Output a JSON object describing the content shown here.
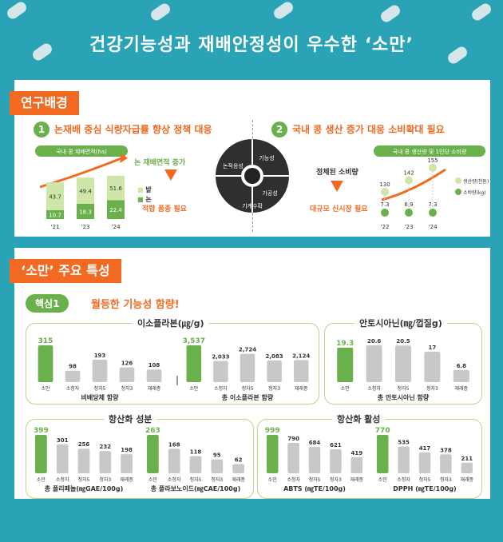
{
  "title": "건강기능성과 재배안정성이 우수한 ‘소만’",
  "section1": {
    "label": "연구배경",
    "left": {
      "num": "1",
      "heading": "논재배 중심 식량자급률 향상 정책 대응",
      "badge": "국내 콩 재배면적(ha)",
      "note1": "논 재배면적 증가",
      "note2": "적합 품종 필요"
    },
    "right": {
      "num": "2",
      "heading": "국내 콩 생산 증가 대응 소비확대 필요",
      "badge": "국내 콩 생산량 및 1인당 소비량",
      "note1": "정체된 소비량",
      "note2": "대규모 신시장 필요"
    },
    "wheel": [
      "기능성",
      "가공성",
      "기계수확",
      "논적응성"
    ]
  },
  "section2": {
    "label": "‘소만’ 주요 특성",
    "core_badge": "핵심1",
    "core_text": "월등한 기능성 함량!"
  },
  "cards": {
    "iso": "이소플라본(㎍/g)",
    "antho": "안토시아닌(㎎/껍질g)",
    "antiox_comp": "항산화 성분",
    "antiox_act": "항산화 활성"
  },
  "chart_data": [
    {
      "type": "bar",
      "title": "국내 콩 재배면적(ha)",
      "categories": [
        "‘21",
        "‘23",
        "‘24"
      ],
      "series": [
        {
          "name": "밭",
          "values": [
            43.7,
            49.4,
            51.6
          ]
        },
        {
          "name": "논",
          "values": [
            10.7,
            18.3,
            22.4
          ]
        }
      ],
      "stacked": true
    },
    {
      "type": "scatter",
      "title": "국내 콩 생산량 및 1인당 소비량",
      "categories": [
        "‘22",
        "‘23",
        "‘24"
      ],
      "series": [
        {
          "name": "생산량(천톤)",
          "values": [
            130,
            142,
            155
          ]
        },
        {
          "name": "소비량(kg)",
          "values": [
            7.3,
            6.9,
            7.3
          ]
        }
      ]
    },
    {
      "type": "bar",
      "xlabel": "비배당체 함량",
      "categories": [
        "소만",
        "소청자",
        "청자5",
        "청자3",
        "재래종"
      ],
      "values": [
        315,
        98,
        193,
        126,
        108
      ]
    },
    {
      "type": "bar",
      "xlabel": "총 이소플라본 함량",
      "categories": [
        "소만",
        "소청자",
        "청자5",
        "청자3",
        "재래종"
      ],
      "values": [
        "3,537",
        "2,033",
        "2,724",
        "2,083",
        "2,124"
      ]
    },
    {
      "type": "bar",
      "xlabel": "총 안토시아닌 함량",
      "categories": [
        "소만",
        "소청자",
        "청자5",
        "청자3",
        "재래종"
      ],
      "values": [
        19.3,
        20.6,
        20.5,
        17.0,
        6.8
      ]
    },
    {
      "type": "bar",
      "xlabel": "총 폴리페놀(㎎GAE/100g)",
      "categories": [
        "소만",
        "소청자",
        "청자5",
        "청자3",
        "재래종"
      ],
      "values": [
        399,
        301,
        256,
        232,
        198
      ]
    },
    {
      "type": "bar",
      "xlabel": "총 플라보노이드(㎎CAE/100g)",
      "categories": [
        "소만",
        "소청자",
        "청자5",
        "청자3",
        "재래종"
      ],
      "values": [
        263,
        168,
        118,
        95,
        62
      ]
    },
    {
      "type": "bar",
      "xlabel": "ABTS (㎎TE/100g)",
      "categories": [
        "소만",
        "소청자",
        "청자5",
        "청자3",
        "재래종"
      ],
      "values": [
        999,
        790,
        684,
        621,
        419
      ]
    },
    {
      "type": "bar",
      "xlabel": "DPPH (㎎TE/100g)",
      "categories": [
        "소만",
        "소청자",
        "청자5",
        "청자3",
        "재래종"
      ],
      "values": [
        770,
        535,
        417,
        378,
        211
      ]
    }
  ],
  "colors": {
    "accent": "#f26a21",
    "green": "#6ab04c",
    "grey": "#c8c8c8",
    "bg": "#2aa3b6"
  }
}
